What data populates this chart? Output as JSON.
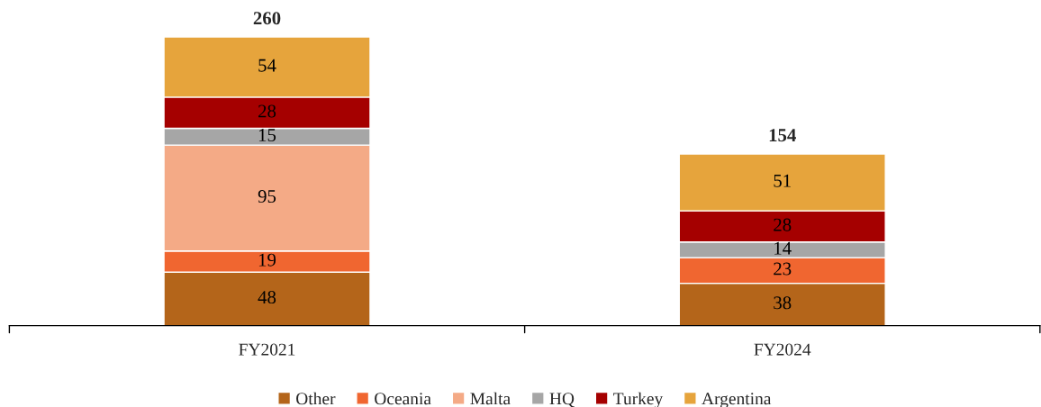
{
  "chart_data": {
    "type": "bar",
    "stacked": true,
    "categories": [
      "FY2021",
      "FY2024"
    ],
    "series": [
      {
        "name": "Other",
        "color": "#b4651a",
        "values": [
          48,
          38
        ]
      },
      {
        "name": "Oceania",
        "color": "#f06630",
        "values": [
          19,
          23
        ]
      },
      {
        "name": "Malta",
        "color": "#f4aa86",
        "values": [
          95,
          null
        ]
      },
      {
        "name": "HQ",
        "color": "#a6a6a6",
        "values": [
          15,
          14
        ]
      },
      {
        "name": "Turkey",
        "color": "#a50000",
        "values": [
          28,
          28
        ]
      },
      {
        "name": "Argentina",
        "color": "#e6a43c",
        "values": [
          54,
          51
        ]
      }
    ],
    "data_labels": true,
    "totals": [
      "260",
      "154"
    ],
    "legend": "bottom",
    "grid": false
  }
}
